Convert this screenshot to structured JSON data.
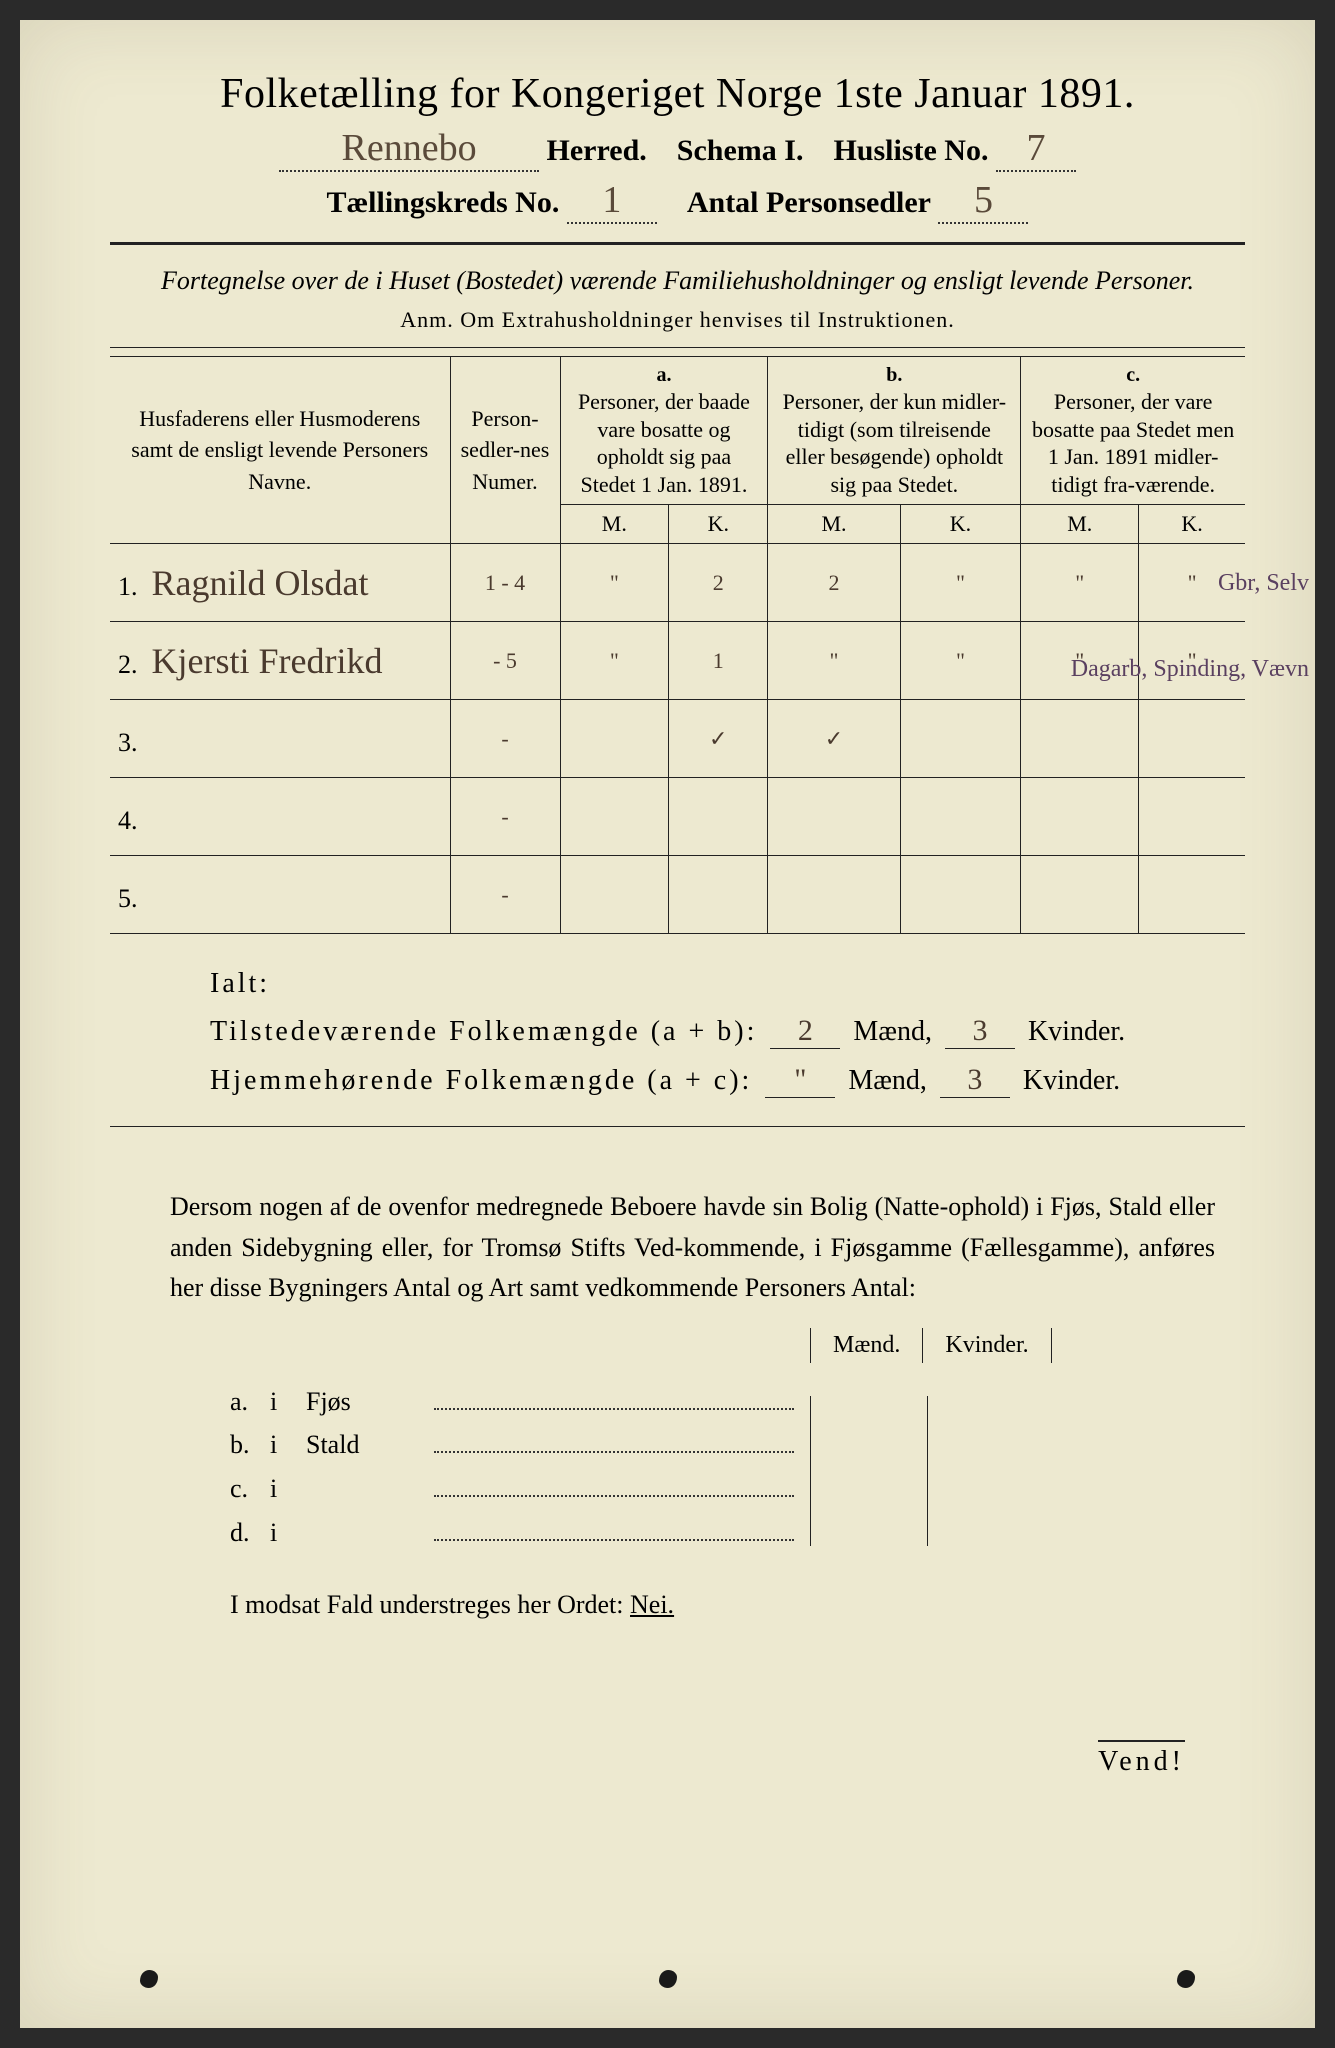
{
  "title": "Folketælling for Kongeriget Norge 1ste Januar 1891.",
  "header": {
    "herred_value": "Rennebo",
    "herred_label": "Herred.",
    "schema_label": "Schema I.",
    "husliste_label": "Husliste No.",
    "husliste_value": "7",
    "kreds_label": "Tællingskreds No.",
    "kreds_value": "1",
    "antal_label": "Antal Personsedler",
    "antal_value": "5"
  },
  "intro": {
    "line": "Fortegnelse over de i Huset (Bostedet) værende Familiehusholdninger og ensligt levende Personer.",
    "anm": "Anm.  Om Extrahusholdninger henvises til Instruktionen."
  },
  "table": {
    "col_name": "Husfaderens eller Husmoderens samt de ensligt levende Personers Navne.",
    "col_num": "Person-sedler-nes Numer.",
    "a_label": "a.",
    "a_text": "Personer, der baade vare bosatte og opholdt sig paa Stedet 1 Jan. 1891.",
    "b_label": "b.",
    "b_text": "Personer, der kun midler-tidigt (som tilreisende eller besøgende) opholdt sig paa Stedet.",
    "c_label": "c.",
    "c_text": "Personer, der vare bosatte paa Stedet men 1 Jan. 1891 midler-tidigt fra-værende.",
    "m": "M.",
    "k": "K.",
    "rows": [
      {
        "n": "1.",
        "name": "Ragnild Olsdat",
        "num": "1 - 4",
        "aM": "\"",
        "aK": "2",
        "bM": "2",
        "bK": "\"",
        "cM": "\"",
        "cK": "\"",
        "note": "Gbr, Selv"
      },
      {
        "n": "2.",
        "name": "Kjersti Fredrikd",
        "num": "- 5",
        "aM": "\"",
        "aK": "1",
        "bM": "\"",
        "bK": "\"",
        "cM": "\"",
        "cK": "\"",
        "note": "Dagarb, Spinding, Vævn"
      },
      {
        "n": "3.",
        "name": "",
        "num": "-",
        "aM": "",
        "aK": "✓",
        "bM": "✓",
        "bK": "",
        "cM": "",
        "cK": "",
        "note": ""
      },
      {
        "n": "4.",
        "name": "",
        "num": "-",
        "aM": "",
        "aK": "",
        "bM": "",
        "bK": "",
        "cM": "",
        "cK": "",
        "note": ""
      },
      {
        "n": "5.",
        "name": "",
        "num": "-",
        "aM": "",
        "aK": "",
        "bM": "",
        "bK": "",
        "cM": "",
        "cK": "",
        "note": ""
      }
    ]
  },
  "ialt": {
    "label": "Ialt:",
    "line1_a": "Tilstedeværende Folkemængde (a + b):",
    "line1_m": "2",
    "line1_k": "3",
    "line2_a": "Hjemmehørende Folkemængde (a + c):",
    "line2_m": "\"",
    "line2_k": "3",
    "maend": "Mænd,",
    "kvinder": "Kvinder."
  },
  "para": "Dersom nogen af de ovenfor medregnede Beboere havde sin Bolig (Natte-ophold) i Fjøs, Stald eller anden Sidebygning eller, for Tromsø Stifts Ved-kommende, i Fjøsgamme (Fællesgamme), anføres her disse Bygningers Antal og Art samt vedkommende Personers Antal:",
  "side": {
    "maend": "Mænd.",
    "kvinder": "Kvinder.",
    "rows": [
      {
        "l": "a.",
        "i": "i",
        "n": "Fjøs"
      },
      {
        "l": "b.",
        "i": "i",
        "n": "Stald"
      },
      {
        "l": "c.",
        "i": "i",
        "n": ""
      },
      {
        "l": "d.",
        "i": "i",
        "n": ""
      }
    ]
  },
  "nei": {
    "text": "I modsat Fald understreges her Ordet:",
    "word": "Nei."
  },
  "vend": "Vend!"
}
